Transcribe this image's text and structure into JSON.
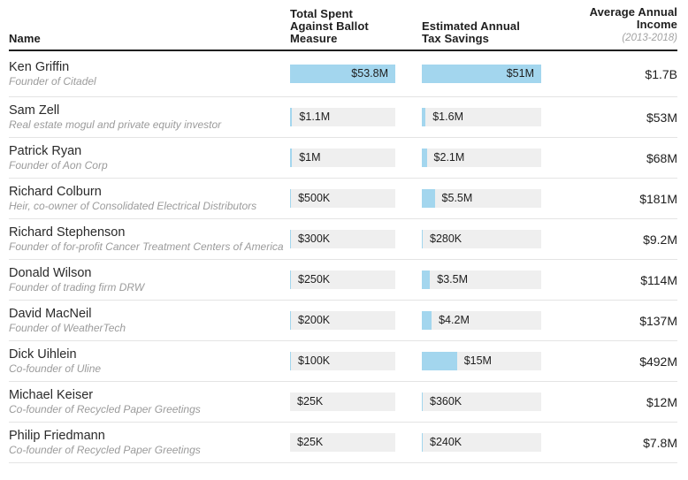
{
  "colors": {
    "bar_blue": "#a3d6ee",
    "track_gray": "#efefef",
    "header_rule": "#1f1f1f",
    "row_divider": "#e4e4e4",
    "description_gray": "#9b9b9b"
  },
  "header": {
    "name": "Name",
    "spent": "Total Spent\nAgainst Ballot\nMeasure",
    "tax": "Estimated Annual\nTax Savings",
    "income": "Average Annual\nIncome",
    "income_note": "(2013-2018)"
  },
  "chart_data": {
    "type": "table",
    "columns": [
      "Name",
      "Total Spent Against Ballot Measure",
      "Estimated Annual Tax Savings",
      "Average Annual Income (2013-2018)"
    ],
    "bar_scale": {
      "spent_max_musd": 53.8,
      "tax_max_musd": 51
    },
    "rows": [
      {
        "name": "Ken Griffin",
        "description": "Founder of Citadel",
        "spent_label": "$53.8M",
        "spent_musd": 53.8,
        "tax_label": "$51M",
        "tax_musd": 51,
        "income_label": "$1.7B"
      },
      {
        "name": "Sam Zell",
        "description": "Real estate mogul and private equity investor",
        "spent_label": "$1.1M",
        "spent_musd": 1.1,
        "tax_label": "$1.6M",
        "tax_musd": 1.6,
        "income_label": "$53M"
      },
      {
        "name": "Patrick Ryan",
        "description": "Founder of Aon Corp",
        "spent_label": "$1M",
        "spent_musd": 1.0,
        "tax_label": "$2.1M",
        "tax_musd": 2.1,
        "income_label": "$68M"
      },
      {
        "name": "Richard Colburn",
        "description": "Heir, co-owner of Consolidated Electrical Distributors",
        "spent_label": "$500K",
        "spent_musd": 0.5,
        "tax_label": "$5.5M",
        "tax_musd": 5.5,
        "income_label": "$181M"
      },
      {
        "name": "Richard Stephenson",
        "description": "Founder of for-profit Cancer Treatment Centers of America",
        "spent_label": "$300K",
        "spent_musd": 0.3,
        "tax_label": "$280K",
        "tax_musd": 0.28,
        "income_label": "$9.2M"
      },
      {
        "name": "Donald Wilson",
        "description": "Founder of trading firm DRW",
        "spent_label": "$250K",
        "spent_musd": 0.25,
        "tax_label": "$3.5M",
        "tax_musd": 3.5,
        "income_label": "$114M"
      },
      {
        "name": "David MacNeil",
        "description": "Founder of WeatherTech",
        "spent_label": "$200K",
        "spent_musd": 0.2,
        "tax_label": "$4.2M",
        "tax_musd": 4.2,
        "income_label": "$137M"
      },
      {
        "name": "Dick Uihlein",
        "description": "Co-founder of Uline",
        "spent_label": "$100K",
        "spent_musd": 0.1,
        "tax_label": "$15M",
        "tax_musd": 15,
        "income_label": "$492M"
      },
      {
        "name": "Michael Keiser",
        "description": "Co-founder of Recycled Paper Greetings",
        "spent_label": "$25K",
        "spent_musd": 0.025,
        "tax_label": "$360K",
        "tax_musd": 0.36,
        "income_label": "$12M"
      },
      {
        "name": "Philip Friedmann",
        "description": "Co-founder of Recycled Paper Greetings",
        "spent_label": "$25K",
        "spent_musd": 0.025,
        "tax_label": "$240K",
        "tax_musd": 0.24,
        "income_label": "$7.8M"
      }
    ]
  }
}
